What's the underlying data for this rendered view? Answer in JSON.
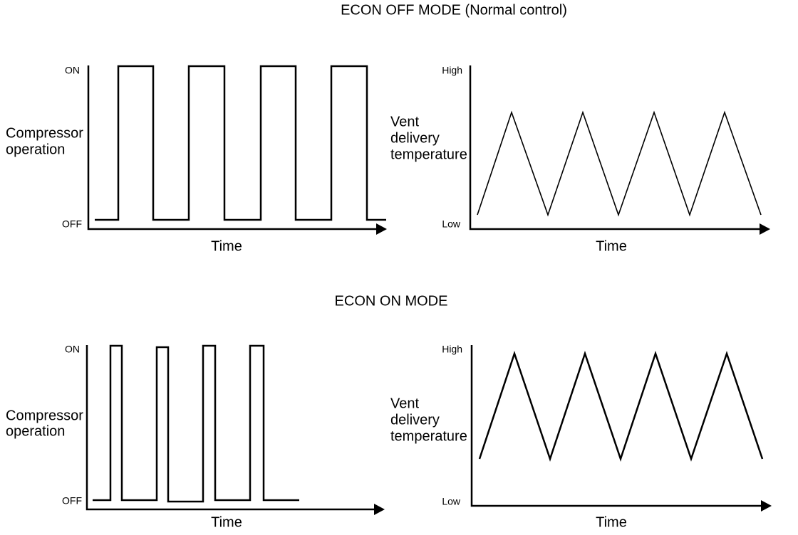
{
  "sections": [
    {
      "title": "ECON OFF MODE (Normal control)",
      "left": {
        "top_label": "ON",
        "bottom_label": "OFF",
        "axis_label": [
          "Compressor",
          "operation"
        ],
        "x_label": "Time"
      },
      "right": {
        "top_label": "High",
        "bottom_label": "Low",
        "axis_label": [
          "Vent",
          "delivery",
          "temperature"
        ],
        "x_label": "Time"
      }
    },
    {
      "title": "ECON ON MODE",
      "left": {
        "top_label": "ON",
        "bottom_label": "OFF",
        "axis_label": [
          "Compressor",
          "operation"
        ],
        "x_label": "Time"
      },
      "right": {
        "top_label": "High",
        "bottom_label": "Low",
        "axis_label": [
          "Vent",
          "delivery",
          "temperature"
        ],
        "x_label": "Time"
      }
    }
  ]
}
